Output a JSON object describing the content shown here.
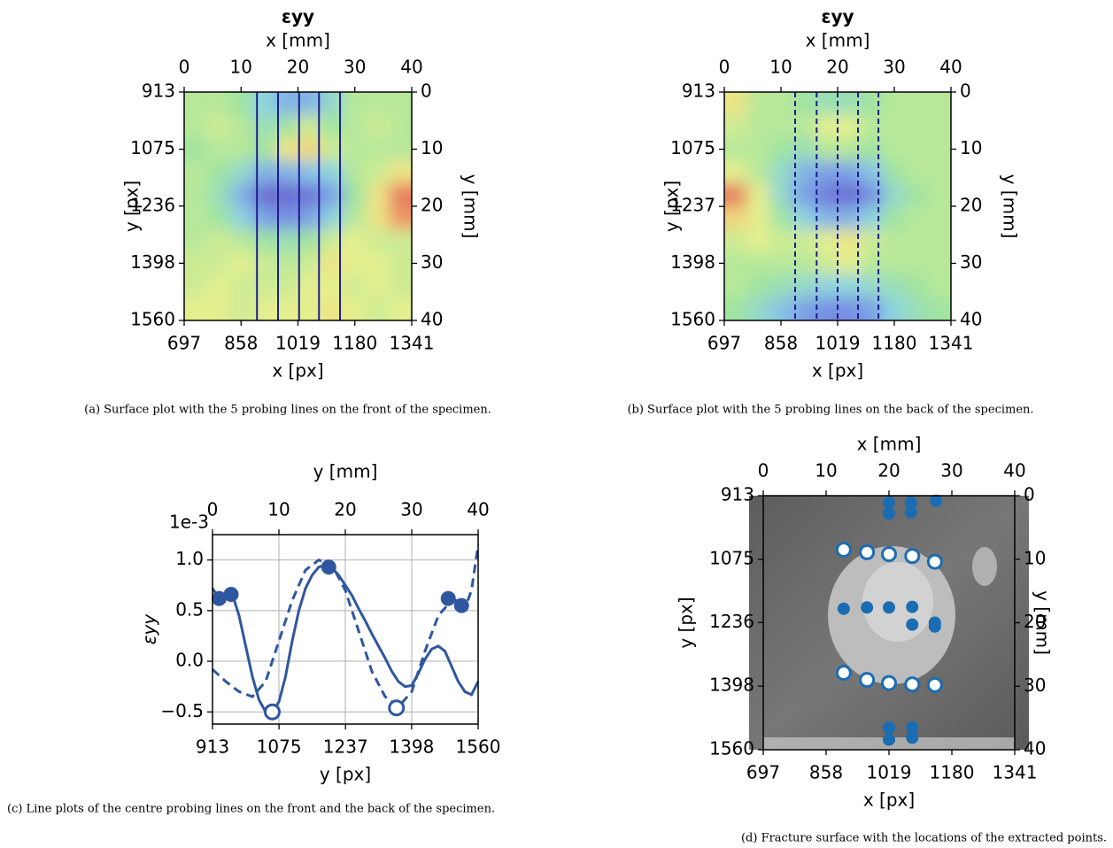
{
  "chart_data": [
    {
      "type": "contour",
      "title": "εyy",
      "x_top": {
        "label": "x [mm]",
        "lim": [
          0,
          40
        ],
        "ticks": [
          0,
          10,
          20,
          30,
          40
        ]
      },
      "x_bottom": {
        "label": "x [px]",
        "lim": [
          697,
          1341
        ],
        "ticks": [
          697,
          858,
          1019,
          1180,
          1341
        ]
      },
      "y_left": {
        "label": "y [px]",
        "lim": [
          913,
          1560
        ],
        "inverted": true,
        "ticks": [
          913,
          1075,
          1236,
          1398,
          1560
        ]
      },
      "y_right": {
        "label": "y [mm]",
        "lim": [
          0,
          40
        ],
        "inverted": true,
        "ticks": [
          0,
          10,
          20,
          30,
          40
        ]
      },
      "z": [
        [
          0.1,
          0.1,
          0.0,
          -0.3,
          -0.5,
          -0.5,
          -0.2,
          0.1,
          0.1,
          0.1
        ],
        [
          0.1,
          0.2,
          0.1,
          -0.1,
          0.0,
          0.2,
          0.0,
          0.1,
          0.2,
          0.1
        ],
        [
          0.0,
          0.1,
          0.1,
          0.0,
          0.4,
          0.5,
          0.2,
          0.1,
          0.1,
          0.1
        ],
        [
          0.1,
          0.0,
          -0.2,
          -0.5,
          -0.5,
          -0.4,
          -0.3,
          0.1,
          0.2,
          0.4
        ],
        [
          0.1,
          -0.1,
          -0.5,
          -0.9,
          -0.9,
          -0.85,
          -0.6,
          0.0,
          0.4,
          0.9
        ],
        [
          0.1,
          0.0,
          -0.3,
          -0.6,
          -0.7,
          -0.6,
          -0.3,
          0.1,
          0.4,
          0.8
        ],
        [
          0.1,
          0.2,
          0.1,
          0.0,
          -0.1,
          0.0,
          0.2,
          0.3,
          0.2,
          0.2
        ],
        [
          0.2,
          0.2,
          0.3,
          0.2,
          0.1,
          0.2,
          0.4,
          0.3,
          0.3,
          0.2
        ],
        [
          0.2,
          0.3,
          0.2,
          0.2,
          0.2,
          0.3,
          0.3,
          0.2,
          0.3,
          0.2
        ],
        [
          0.3,
          0.3,
          0.2,
          0.3,
          0.3,
          0.3,
          0.4,
          0.3,
          0.2,
          0.3
        ]
      ],
      "probe_lines": {
        "x": [
          12.8,
          16.5,
          20.2,
          23.7,
          27.4
        ],
        "style": "solid",
        "color": "#1c1c8c"
      },
      "caption": "(a) Surface plot with the 5 probing lines on the front of the specimen."
    },
    {
      "type": "contour",
      "title": "εyy",
      "x_top": {
        "label": "x [mm]",
        "lim": [
          0,
          40
        ],
        "ticks": [
          0,
          10,
          20,
          30,
          40
        ]
      },
      "x_bottom": {
        "label": "x [px]",
        "lim": [
          697,
          1341
        ],
        "ticks": [
          697,
          858,
          1019,
          1180,
          1341
        ]
      },
      "y_left": {
        "label": "y [px]",
        "lim": [
          913,
          1560
        ],
        "inverted": true,
        "ticks": [
          913,
          1075,
          1237,
          1398,
          1560
        ]
      },
      "y_right": {
        "label": "y [mm]",
        "lim": [
          0,
          40
        ],
        "inverted": true,
        "ticks": [
          0,
          10,
          20,
          30,
          40
        ]
      },
      "z": [
        [
          0.4,
          0.1,
          0.1,
          0.0,
          -0.1,
          -0.1,
          0.0,
          0.1,
          0.1,
          0.1
        ],
        [
          0.2,
          0.1,
          0.1,
          0.1,
          0.3,
          0.3,
          0.1,
          0.1,
          0.1,
          0.1
        ],
        [
          0.1,
          0.1,
          0.0,
          -0.1,
          0.1,
          0.1,
          0.0,
          0.1,
          0.1,
          0.1
        ],
        [
          0.3,
          0.1,
          -0.2,
          -0.5,
          -0.6,
          -0.6,
          -0.4,
          0.0,
          0.1,
          0.1
        ],
        [
          0.9,
          0.3,
          -0.2,
          -0.6,
          -0.8,
          -0.9,
          -0.7,
          -0.2,
          0.0,
          0.1
        ],
        [
          0.5,
          0.3,
          0.0,
          -0.3,
          -0.5,
          -0.5,
          -0.3,
          0.0,
          0.1,
          0.1
        ],
        [
          0.2,
          0.3,
          0.2,
          0.2,
          0.3,
          0.4,
          0.2,
          0.1,
          0.1,
          0.1
        ],
        [
          0.1,
          0.1,
          0.1,
          0.1,
          0.2,
          0.3,
          0.1,
          0.1,
          0.1,
          0.1
        ],
        [
          0.1,
          0.0,
          -0.1,
          -0.2,
          -0.3,
          -0.3,
          -0.2,
          -0.1,
          0.0,
          0.1
        ],
        [
          0.0,
          -0.2,
          -0.4,
          -0.6,
          -0.7,
          -0.7,
          -0.6,
          -0.3,
          -0.1,
          0.0
        ]
      ],
      "probe_lines": {
        "x": [
          12.5,
          16.3,
          20.0,
          23.6,
          27.2
        ],
        "style": "dashed",
        "color": "#1c1c8c"
      },
      "caption": "(b) Surface plot with the 5 probing lines on the back of the specimen."
    },
    {
      "type": "line",
      "x_top": {
        "label": "y [mm]",
        "lim": [
          0,
          40
        ],
        "ticks": [
          0,
          10,
          20,
          30,
          40
        ]
      },
      "x_bottom": {
        "label": "y [px]",
        "lim": [
          913,
          1560
        ],
        "ticks": [
          913,
          1075,
          1237,
          1398,
          1560
        ]
      },
      "y_left": {
        "label": "εyy",
        "lim": [
          -0.62,
          1.25
        ],
        "ticks": [
          {
            "value": -0.5,
            "label": "−0.5"
          },
          {
            "value": 0,
            "label": "0.0"
          },
          0.5,
          {
            "value": 1,
            "label": "1.0"
          }
        ]
      },
      "offset_text": "1e-3",
      "grid": true,
      "series": [
        {
          "style": "solid",
          "color": "#2f57a0",
          "x": [
            0,
            1,
            2,
            3,
            4,
            5,
            6,
            7,
            8,
            9,
            10,
            11,
            12,
            13,
            14,
            15,
            16,
            17,
            18,
            19,
            20,
            21,
            22,
            23,
            24,
            25,
            26,
            27,
            28,
            29,
            30,
            31,
            32,
            33,
            34,
            35,
            36,
            37,
            38,
            39,
            40
          ],
          "values": [
            0.72,
            0.62,
            0.64,
            0.66,
            0.45,
            0.15,
            -0.15,
            -0.38,
            -0.5,
            -0.5,
            -0.4,
            -0.15,
            0.2,
            0.5,
            0.72,
            0.85,
            0.93,
            0.95,
            0.92,
            0.85,
            0.75,
            0.65,
            0.52,
            0.4,
            0.27,
            0.15,
            0.03,
            -0.1,
            -0.2,
            -0.25,
            -0.24,
            -0.12,
            0.02,
            0.12,
            0.15,
            0.1,
            -0.05,
            -0.2,
            -0.3,
            -0.33,
            -0.2
          ]
        },
        {
          "style": "dashed",
          "color": "#2f57a0",
          "x": [
            0,
            2,
            4,
            6,
            8,
            10,
            12,
            14,
            16,
            18,
            20,
            22,
            24,
            26,
            28,
            30,
            32,
            34,
            36,
            37,
            38,
            39,
            40
          ],
          "values": [
            -0.08,
            -0.2,
            -0.3,
            -0.35,
            -0.2,
            0.2,
            0.6,
            0.9,
            1.0,
            0.95,
            0.7,
            0.3,
            -0.1,
            -0.35,
            -0.45,
            -0.3,
            0.1,
            0.45,
            0.6,
            0.6,
            0.52,
            0.7,
            1.15
          ]
        },
        {
          "style": "markers-filled",
          "color": "#2f57a0",
          "x": [
            1,
            2.8,
            17.5,
            35.5,
            37.5
          ],
          "values": [
            0.62,
            0.66,
            0.93,
            0.62,
            0.55
          ]
        },
        {
          "style": "markers-hollow",
          "color": "#2f57a0",
          "x": [
            9,
            27.7
          ],
          "values": [
            -0.5,
            -0.46
          ]
        }
      ],
      "caption": "(c) Line plots of the centre probing lines on the front and the back of the specimen."
    },
    {
      "type": "scatter",
      "x_top": {
        "label": "x [mm]",
        "lim": [
          0,
          40
        ],
        "ticks": [
          0,
          10,
          20,
          30,
          40
        ]
      },
      "x_bottom": {
        "label": "x [px]",
        "lim": [
          697,
          1341
        ],
        "ticks": [
          697,
          858,
          1019,
          1180,
          1341
        ]
      },
      "y_left": {
        "label": "y [px]",
        "lim": [
          913,
          1560
        ],
        "inverted": true,
        "ticks": [
          913,
          1075,
          1236,
          1398,
          1560
        ]
      },
      "y_right": {
        "label": "y [mm]",
        "lim": [
          0,
          40
        ],
        "inverted": true,
        "ticks": [
          0,
          10,
          20,
          30,
          40
        ]
      },
      "series": [
        {
          "style": "markers-filled",
          "color": "#1a6db3",
          "x": [
            20.0,
            20.0,
            23.5,
            23.5,
            27.5,
            12.8,
            16.5,
            20.0,
            23.7,
            23.7,
            27.3,
            27.3,
            20.0,
            20.0,
            23.7,
            23.7
          ],
          "values": [
            1.1,
            2.8,
            1.1,
            2.6,
            0.8,
            17.8,
            17.6,
            17.6,
            17.5,
            20.3,
            20.0,
            20.6,
            36.5,
            38.4,
            36.5,
            38.1
          ]
        },
        {
          "style": "markers-hollow",
          "color": "#1a6db3",
          "x": [
            12.8,
            16.5,
            20.0,
            23.7,
            27.3,
            12.8,
            16.5,
            20.0,
            23.7,
            27.3
          ],
          "values": [
            8.5,
            8.9,
            9.2,
            9.5,
            10.4,
            27.9,
            29.0,
            29.5,
            29.7,
            29.8
          ]
        }
      ],
      "caption": "(d) Fracture surface with the locations of the extracted points."
    }
  ]
}
